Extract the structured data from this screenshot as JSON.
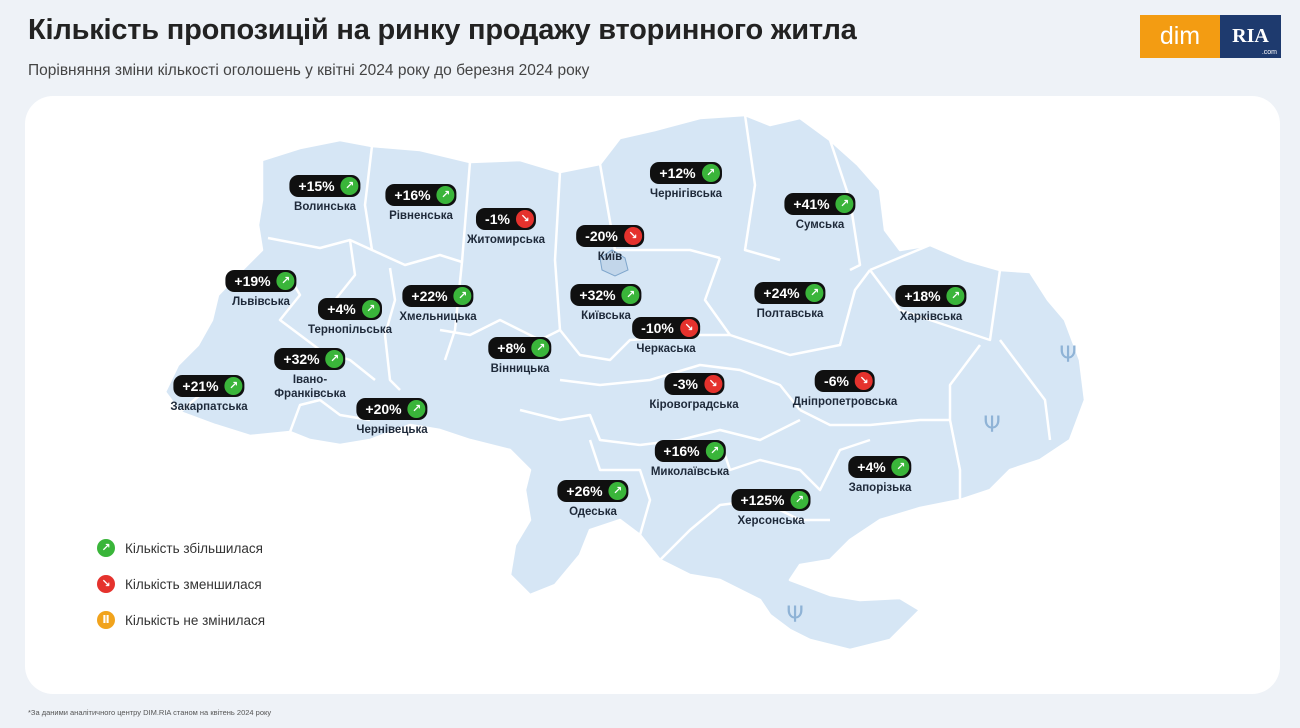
{
  "header": {
    "title": "Кількість пропозицій на ринку продажу вторинного житла",
    "subtitle": "Порівняння зміни кількості оголошень у квітні 2024 року до березня 2024 року"
  },
  "logo": {
    "dim": "dim",
    "ria": "RIA",
    "ria_suffix": ".com"
  },
  "colors": {
    "up": "#3ab53a",
    "down": "#e5322d",
    "same": "#f1a31c",
    "map_fill": "#d6e6f5"
  },
  "regions": [
    {
      "name": "Волинська",
      "value": "+15%",
      "trend": "up"
    },
    {
      "name": "Рівненська",
      "value": "+16%",
      "trend": "up"
    },
    {
      "name": "Житомирська",
      "value": "-1%",
      "trend": "down"
    },
    {
      "name": "Київ",
      "value": "-20%",
      "trend": "down"
    },
    {
      "name": "Чернігівська",
      "value": "+12%",
      "trend": "up"
    },
    {
      "name": "Сумська",
      "value": "+41%",
      "trend": "up"
    },
    {
      "name": "Львівська",
      "value": "+19%",
      "trend": "up"
    },
    {
      "name": "Тернопільська",
      "value": "+4%",
      "trend": "up"
    },
    {
      "name": "Хмельницька",
      "value": "+22%",
      "trend": "up"
    },
    {
      "name": "Київська",
      "value": "+32%",
      "trend": "up"
    },
    {
      "name": "Полтавська",
      "value": "+24%",
      "trend": "up"
    },
    {
      "name": "Харківська",
      "value": "+18%",
      "trend": "up"
    },
    {
      "name": "Черкаська",
      "value": "-10%",
      "trend": "down"
    },
    {
      "name": "Івано-\nФранківська",
      "value": "+32%",
      "trend": "up"
    },
    {
      "name": "Вінницька",
      "value": "+8%",
      "trend": "up"
    },
    {
      "name": "Закарпатська",
      "value": "+21%",
      "trend": "up"
    },
    {
      "name": "Кіровоградська",
      "value": "-3%",
      "trend": "down"
    },
    {
      "name": "Дніпропетровська",
      "value": "-6%",
      "trend": "down"
    },
    {
      "name": "Чернівецька",
      "value": "+20%",
      "trend": "up"
    },
    {
      "name": "Миколаївська",
      "value": "+16%",
      "trend": "up"
    },
    {
      "name": "Запорізька",
      "value": "+4%",
      "trend": "up"
    },
    {
      "name": "Одеська",
      "value": "+26%",
      "trend": "up"
    },
    {
      "name": "Херсонська",
      "value": "+125%",
      "trend": "up"
    }
  ],
  "legend": [
    {
      "label": "Кількість збільшилася",
      "trend": "up"
    },
    {
      "label": "Кількість зменшилася",
      "trend": "down"
    },
    {
      "label": "Кількість не змінилася",
      "trend": "same"
    }
  ],
  "icons": {
    "up": "arrow-up-right-icon",
    "down": "arrow-down-right-icon",
    "same": "pause-icon",
    "occupied": "trident-icon"
  },
  "footnote": "*За даними аналітичного центру DIM.RIA станом на квітень 2024 року"
}
